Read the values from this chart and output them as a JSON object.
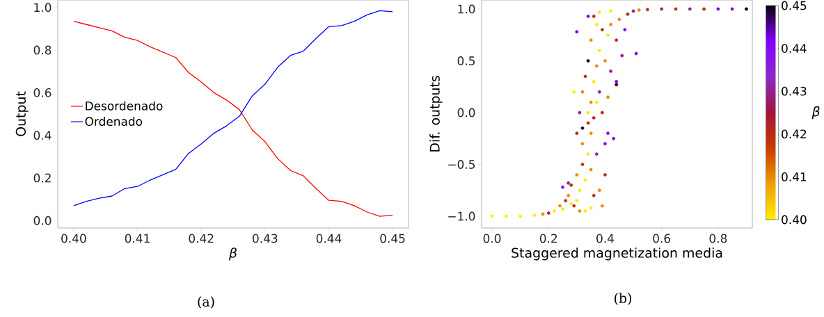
{
  "chart_data": [
    {
      "type": "line",
      "xlabel": "β",
      "ylabel": "Output",
      "x": [
        0.4,
        0.402,
        0.404,
        0.406,
        0.408,
        0.41,
        0.412,
        0.414,
        0.416,
        0.418,
        0.42,
        0.422,
        0.424,
        0.426,
        0.428,
        0.43,
        0.432,
        0.434,
        0.436,
        0.438,
        0.44,
        0.442,
        0.444,
        0.446,
        0.448,
        0.45
      ],
      "series": [
        {
          "name": "Desordenado",
          "color": "#ff0000",
          "values": [
            0.935,
            0.92,
            0.905,
            0.89,
            0.86,
            0.845,
            0.815,
            0.79,
            0.765,
            0.695,
            0.65,
            0.6,
            0.565,
            0.52,
            0.425,
            0.37,
            0.29,
            0.235,
            0.21,
            0.15,
            0.095,
            0.09,
            0.07,
            0.04,
            0.02,
            0.025
          ]
        },
        {
          "name": "Ordenado",
          "color": "#0000ff",
          "values": [
            0.07,
            0.09,
            0.105,
            0.115,
            0.15,
            0.16,
            0.19,
            0.215,
            0.24,
            0.315,
            0.36,
            0.41,
            0.445,
            0.49,
            0.585,
            0.64,
            0.72,
            0.775,
            0.795,
            0.855,
            0.91,
            0.915,
            0.935,
            0.965,
            0.985,
            0.98
          ]
        }
      ],
      "xlim": [
        0.3975,
        0.4525
      ],
      "ylim": [
        -0.035,
        1.035
      ],
      "xticks": [
        {
          "value": 0.4,
          "label": "0.40"
        },
        0.41,
        0.42,
        0.43,
        0.44,
        0.45
      ],
      "yticks": [
        {
          "value": 0,
          "label": "0.0"
        },
        {
          "value": 0.2,
          "label": "0.2"
        },
        {
          "value": 0.4,
          "label": "0.4"
        },
        {
          "value": 0.6,
          "label": "0.6"
        },
        {
          "value": 0.8,
          "label": "0.8"
        },
        {
          "value": 1.0,
          "label": "1.0"
        }
      ],
      "legend": "center left",
      "annotations": [
        "(a)"
      ]
    },
    {
      "type": "scatter",
      "xlabel": "Staggered magnetization media",
      "ylabel": "Dif. outputs",
      "clabel": "β",
      "x": [
        0.0,
        0.05,
        0.1,
        0.15,
        0.18,
        0.2,
        0.22,
        0.24,
        0.25,
        0.26,
        0.27,
        0.28,
        0.28,
        0.3,
        0.3,
        0.31,
        0.32,
        0.32,
        0.33,
        0.34,
        0.34,
        0.35,
        0.3,
        0.31,
        0.32,
        0.33,
        0.34,
        0.35,
        0.36,
        0.36,
        0.37,
        0.38,
        0.38,
        0.39,
        0.4,
        0.4,
        0.41,
        0.42,
        0.42,
        0.44,
        0.44,
        0.45,
        0.46,
        0.47,
        0.48,
        0.5,
        0.51,
        0.52,
        0.55,
        0.6,
        0.65,
        0.7,
        0.75,
        0.8,
        0.85,
        0.9,
        0.4,
        0.38,
        0.36,
        0.39,
        0.35,
        0.33,
        0.27,
        0.25,
        0.41,
        0.43,
        0.29,
        0.3,
        0.34,
        0.36,
        0.38,
        0.42,
        0.37,
        0.35,
        0.34,
        0.44,
        0.32,
        0.39,
        0.41,
        0.37,
        0.35,
        0.31,
        0.29,
        0.37
      ],
      "values": [
        -1.0,
        -1.0,
        -1.0,
        -0.99,
        -0.98,
        -0.97,
        -0.95,
        -0.9,
        -0.93,
        -0.85,
        -0.8,
        -0.88,
        -0.7,
        -0.6,
        -0.85,
        -0.75,
        -0.5,
        -0.3,
        -0.65,
        -0.4,
        -0.1,
        -0.2,
        -0.2,
        0.0,
        0.2,
        0.35,
        0.0,
        0.1,
        -0.05,
        0.3,
        0.45,
        0.2,
        0.6,
        0.0,
        -0.3,
        0.5,
        0.75,
        0.4,
        0.85,
        0.3,
        0.7,
        0.9,
        0.55,
        0.8,
        0.95,
        0.98,
        0.57,
        0.99,
        0.995,
        1.0,
        1.0,
        1.0,
        1.0,
        1.0,
        1.0,
        1.0,
        -0.6,
        -0.75,
        -0.8,
        -0.9,
        -0.92,
        -0.95,
        -0.68,
        -0.72,
        -0.2,
        -0.25,
        0.2,
        0.78,
        0.93,
        0.93,
        0.97,
        0.98,
        0.85,
        0.7,
        0.5,
        0.27,
        -0.15,
        0.8,
        0.15,
        -0.4,
        -0.55,
        -0.95,
        -0.9,
        0.1
      ],
      "cvalues": [
        0.4,
        0.4,
        0.4,
        0.4,
        0.41,
        0.42,
        0.4,
        0.41,
        0.4,
        0.42,
        0.41,
        0.4,
        0.42,
        0.41,
        0.4,
        0.4,
        0.42,
        0.41,
        0.4,
        0.4,
        0.42,
        0.41,
        0.42,
        0.43,
        0.41,
        0.42,
        0.4,
        0.41,
        0.42,
        0.4,
        0.41,
        0.43,
        0.4,
        0.42,
        0.44,
        0.41,
        0.4,
        0.43,
        0.41,
        0.44,
        0.42,
        0.41,
        0.43,
        0.44,
        0.42,
        0.43,
        0.44,
        0.41,
        0.42,
        0.43,
        0.42,
        0.43,
        0.42,
        0.44,
        0.44,
        0.45,
        0.42,
        0.41,
        0.42,
        0.41,
        0.4,
        0.4,
        0.43,
        0.44,
        0.44,
        0.44,
        0.4,
        0.44,
        0.44,
        0.42,
        0.4,
        0.4,
        0.4,
        0.41,
        0.45,
        0.45,
        0.45,
        0.42,
        0.41,
        0.43,
        0.41,
        0.41,
        0.42,
        0.4
      ],
      "clim": [
        0.4,
        0.45
      ],
      "cticks": [
        {
          "value": 0.4,
          "label": "0.40"
        },
        0.41,
        0.42,
        0.43,
        0.44,
        0.45
      ],
      "xlim": [
        -0.037,
        0.921
      ],
      "ylim": [
        -1.114,
        1.087
      ],
      "xticks": [
        {
          "value": 0,
          "label": "0.0"
        },
        0.2,
        0.4,
        0.6,
        0.8
      ],
      "yticks": [
        {
          "value": -1,
          "label": "−1.0"
        },
        {
          "value": -0.5,
          "label": "−0.5"
        },
        {
          "value": 0,
          "label": "0.0"
        },
        0.5,
        {
          "value": 1,
          "label": "1.0"
        }
      ],
      "marker": "circle",
      "annotations": [
        "(b)"
      ]
    }
  ]
}
